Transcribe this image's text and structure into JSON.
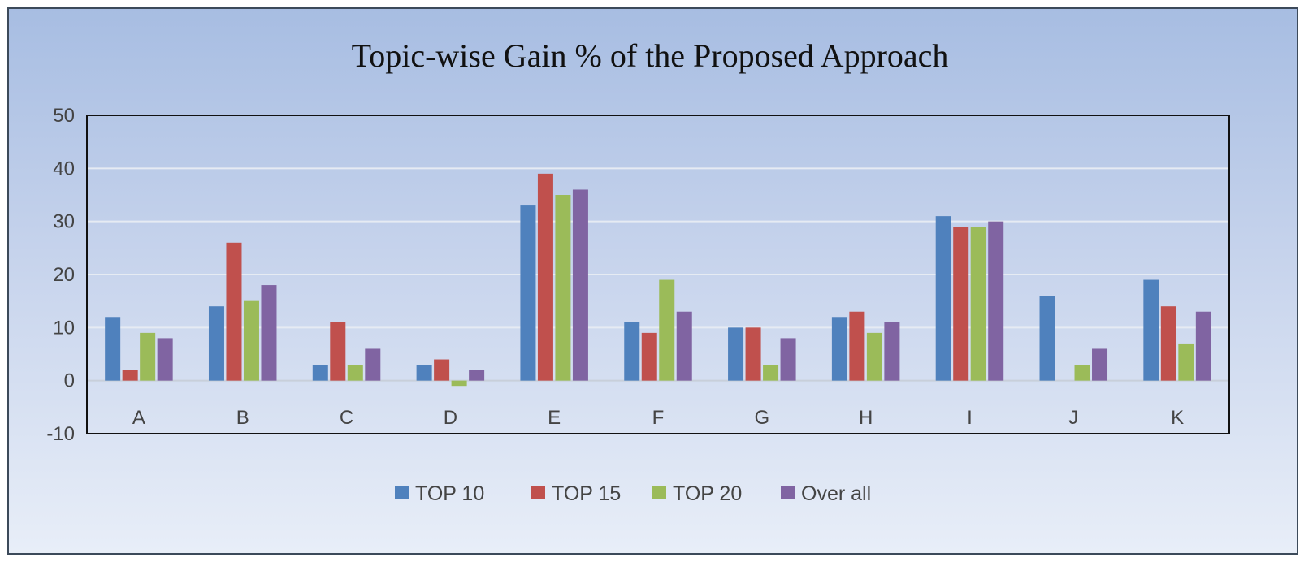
{
  "chart_data": {
    "type": "bar",
    "title": "Topic-wise Gain % of the Proposed Approach",
    "xlabel": "",
    "ylabel": "",
    "ylim": [
      -10,
      50
    ],
    "yticks": [
      50,
      40,
      30,
      20,
      10,
      0,
      -10
    ],
    "grid": true,
    "legend_position": "bottom",
    "categories": [
      "A",
      "B",
      "C",
      "D",
      "E",
      "F",
      "G",
      "H",
      "I",
      "J",
      "K"
    ],
    "series": [
      {
        "name": "TOP 10",
        "color": "#4f81bd",
        "values": [
          12,
          14,
          3,
          3,
          33,
          11,
          10,
          12,
          31,
          16,
          19
        ]
      },
      {
        "name": "TOP 15",
        "color": "#c0504d",
        "values": [
          2,
          26,
          11,
          4,
          39,
          9,
          10,
          13,
          29,
          0,
          14
        ]
      },
      {
        "name": "TOP 20",
        "color": "#9bbb59",
        "values": [
          9,
          15,
          3,
          -1,
          35,
          19,
          3,
          9,
          29,
          3,
          7
        ]
      },
      {
        "name": "Over all",
        "color": "#8064a2",
        "values": [
          8,
          18,
          6,
          2,
          36,
          13,
          8,
          11,
          30,
          6,
          13
        ]
      }
    ]
  }
}
